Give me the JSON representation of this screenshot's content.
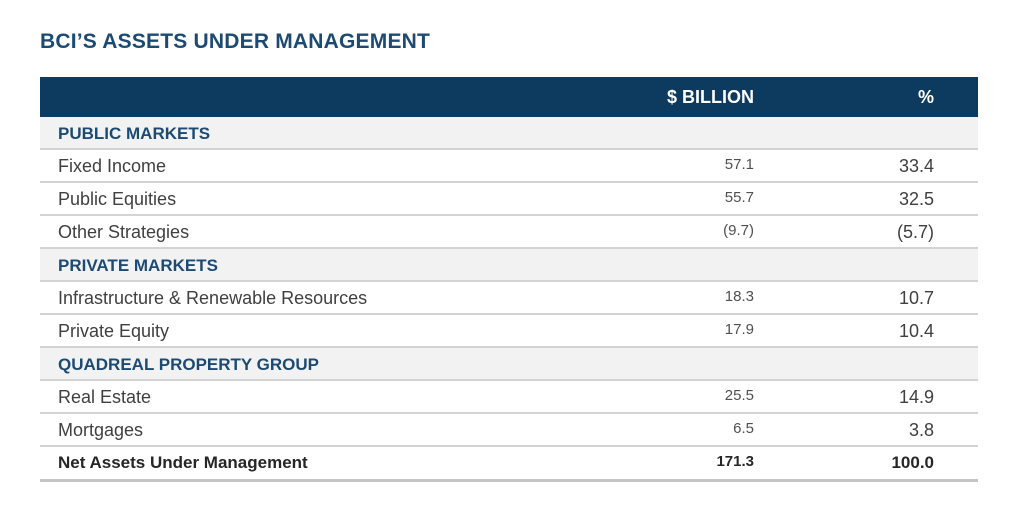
{
  "title": "BCI’S ASSETS UNDER MANAGEMENT",
  "header": {
    "col1": "$ BILLION",
    "col2": "%"
  },
  "rows": [
    {
      "label": "PUBLIC MARKETS"
    },
    {
      "label": "Fixed Income",
      "billion": "57.1",
      "percent": "33.4"
    },
    {
      "label": "Public Equities",
      "billion": "55.7",
      "percent": "32.5"
    },
    {
      "label": "Other Strategies",
      "billion": "(9.7)",
      "percent": "(5.7)"
    },
    {
      "label": "PRIVATE MARKETS"
    },
    {
      "label": "Infrastructure & Renewable Resources",
      "billion": "18.3",
      "percent": "10.7"
    },
    {
      "label": "Private Equity",
      "billion": "17.9",
      "percent": "10.4"
    },
    {
      "label": "QUADREAL PROPERTY GROUP"
    },
    {
      "label": "Real Estate",
      "billion": "25.5",
      "percent": "14.9"
    },
    {
      "label": "Mortgages",
      "billion": "6.5",
      "percent": "3.8"
    },
    {
      "label": "Net Assets Under Management",
      "billion": "171.3",
      "percent": "100.0"
    }
  ],
  "colors": {
    "header_bg": "#0d3a5f",
    "section_text": "#1d4a73",
    "section_bg": "#f2f2f2"
  }
}
